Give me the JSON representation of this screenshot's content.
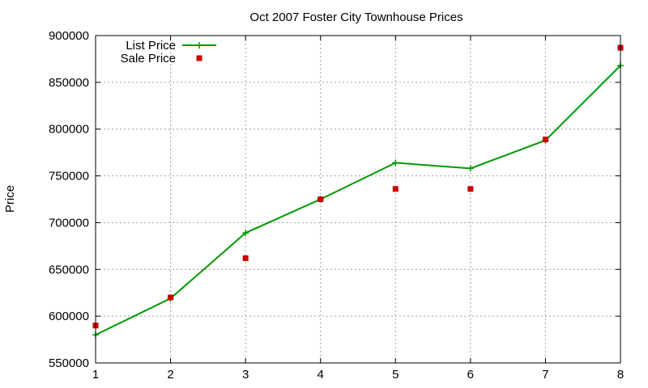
{
  "chart_data": {
    "type": "line",
    "title": "Oct 2007 Foster City Townhouse Prices",
    "xlabel": "",
    "ylabel": "Price",
    "x": [
      1,
      2,
      3,
      4,
      5,
      6,
      7,
      8
    ],
    "xticks": [
      "1",
      "2",
      "3",
      "4",
      "5",
      "6",
      "7",
      "8"
    ],
    "xlim": [
      1,
      8
    ],
    "ylim": [
      550000,
      900000
    ],
    "yticks": [
      "550000",
      "600000",
      "650000",
      "700000",
      "750000",
      "800000",
      "850000",
      "900000"
    ],
    "grid": true,
    "legend_position": "top-left",
    "series": [
      {
        "name": "List Price",
        "kind": "line-with-plus-markers",
        "color": "#009900",
        "x": [
          1,
          2,
          3,
          4,
          5,
          6,
          7,
          8
        ],
        "values": [
          580000,
          619000,
          689000,
          725000,
          764000,
          758000,
          788000,
          868000
        ]
      },
      {
        "name": "Sale Price",
        "kind": "square-markers",
        "color": "#cc0000",
        "x": [
          1,
          2,
          3,
          4,
          5,
          6,
          7,
          8
        ],
        "values": [
          590000,
          620000,
          662000,
          725000,
          736000,
          736000,
          789000,
          887000
        ]
      }
    ]
  }
}
